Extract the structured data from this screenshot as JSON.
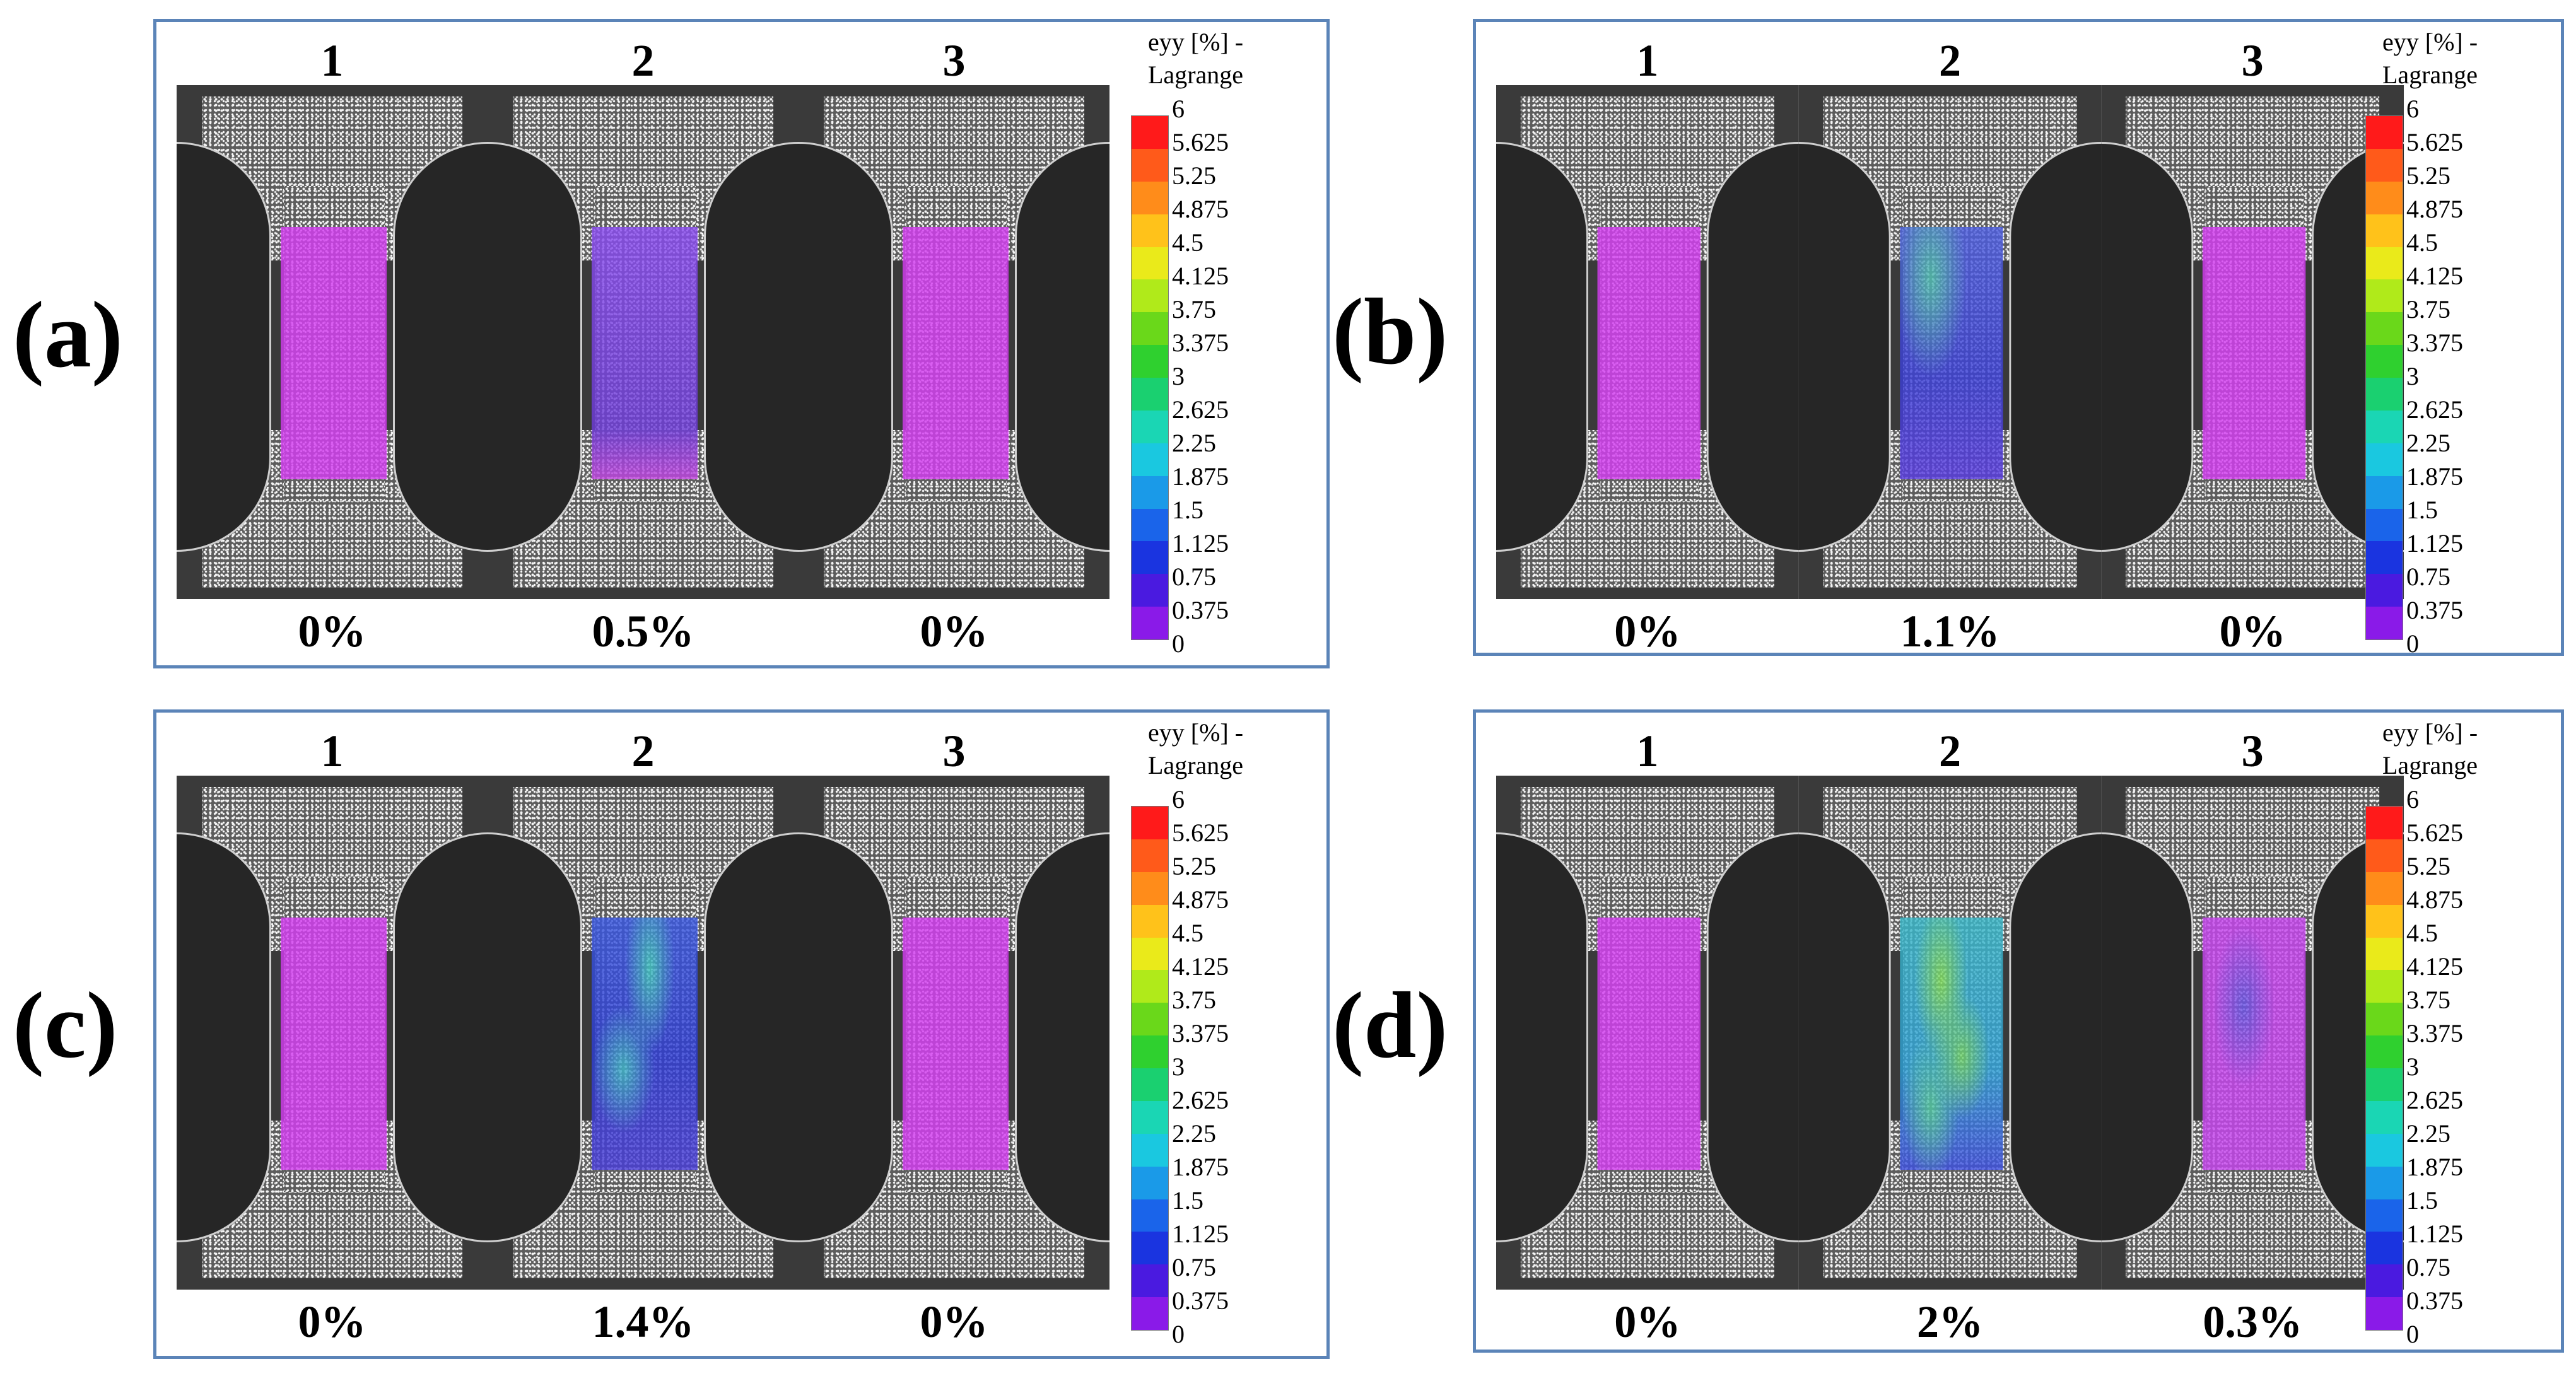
{
  "colorbar": {
    "title_line1": "eyy [%] -",
    "title_line2": "Lagrange",
    "ticks": [
      "6",
      "5.625",
      "5.25",
      "4.875",
      "4.5",
      "4.125",
      "3.75",
      "3.375",
      "3",
      "2.625",
      "2.25",
      "1.875",
      "1.5",
      "1.125",
      "0.75",
      "0.375",
      "0"
    ],
    "colors": [
      "#ff1a1a",
      "#ff5a1a",
      "#ff8c1a",
      "#ffc21a",
      "#eaea1a",
      "#b0ea1a",
      "#6ad81a",
      "#2fd02f",
      "#1ad070",
      "#1ad6b4",
      "#1ac8e0",
      "#1a9ae8",
      "#1a64ea",
      "#1a34e0",
      "#4a1ae0",
      "#8a1ae8",
      "#d21ae8"
    ]
  },
  "panels": [
    {
      "label": "(a)",
      "specimens": [
        {
          "number": "1",
          "strain": "0%"
        },
        {
          "number": "2",
          "strain": "0.5%"
        },
        {
          "number": "3",
          "strain": "0%"
        }
      ]
    },
    {
      "label": "(b)",
      "specimens": [
        {
          "number": "1",
          "strain": "0%"
        },
        {
          "number": "2",
          "strain": "1.1%"
        },
        {
          "number": "3",
          "strain": "0%"
        }
      ]
    },
    {
      "label": "(c)",
      "specimens": [
        {
          "number": "1",
          "strain": "0%"
        },
        {
          "number": "2",
          "strain": "1.4%"
        },
        {
          "number": "3",
          "strain": "0%"
        }
      ]
    },
    {
      "label": "(d)",
      "specimens": [
        {
          "number": "1",
          "strain": "0%"
        },
        {
          "number": "2",
          "strain": "2%"
        },
        {
          "number": "3",
          "strain": "0.3%"
        }
      ]
    }
  ]
}
